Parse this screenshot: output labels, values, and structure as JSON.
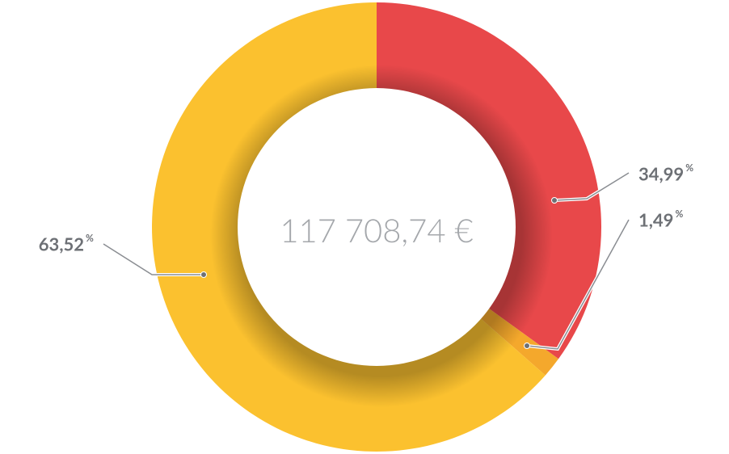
{
  "chart_data": {
    "type": "donut",
    "center_label": "117 708,74 €",
    "categories": [
      null,
      null,
      null
    ],
    "values": [
      34.99,
      1.49,
      63.52
    ],
    "value_labels": [
      "34,99",
      "1,49",
      "63,52"
    ],
    "unit": "%",
    "colors": [
      "#e8484a",
      "#f4a82c",
      "#fbc12f"
    ]
  }
}
